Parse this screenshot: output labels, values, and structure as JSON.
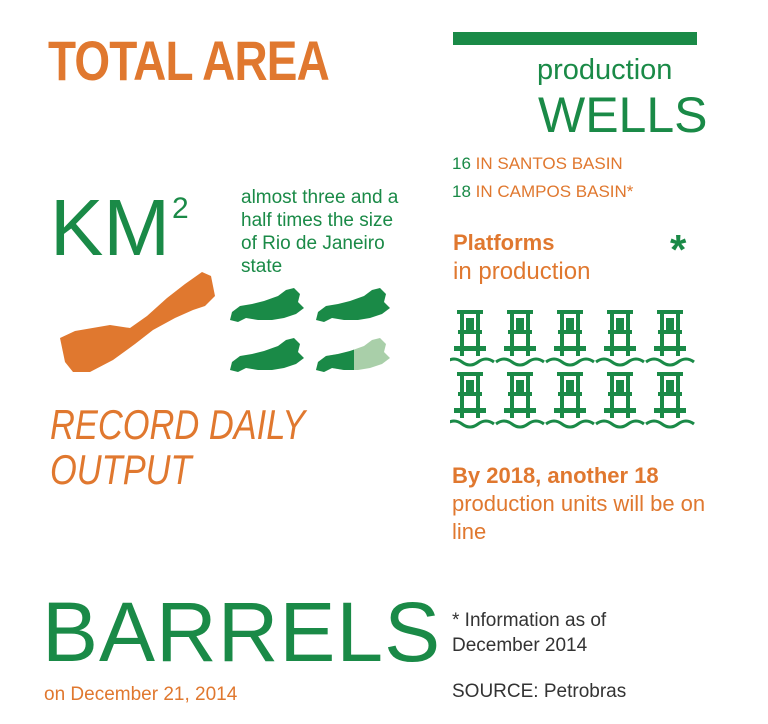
{
  "colors": {
    "orange": "#e0782f",
    "green": "#1a8a47",
    "light_green": "#a9cfa9",
    "text_dark": "#333333"
  },
  "left": {
    "title": "TOTAL AREA",
    "unit_base": "KM",
    "unit_exp": "2",
    "size_comparison": "almost three and a half times the size of Rio de Janeiro state",
    "state_comparison": {
      "full_states": 3,
      "partial_fraction": 0.5
    },
    "record_line1": "RECORD DAILY",
    "record_line2": "OUTPUT",
    "barrels": "BARRELS",
    "barrels_date": "on December 21, 2014"
  },
  "right": {
    "wells_sub": "production",
    "wells_title": "WELLS",
    "santos_count": "16",
    "santos_text": "IN SANTOS BASIN",
    "campos_count": "18",
    "campos_text": "IN CAMPOS BASIN*",
    "platforms_title": "Platforms",
    "platforms_sub": "in production",
    "asterisk": "*",
    "platform_count": 10,
    "another_bold": "By 2018, another 18",
    "another_rest": "production units will be on line",
    "footnote": "* Information as of December 2014",
    "source": "SOURCE: Petrobras"
  }
}
